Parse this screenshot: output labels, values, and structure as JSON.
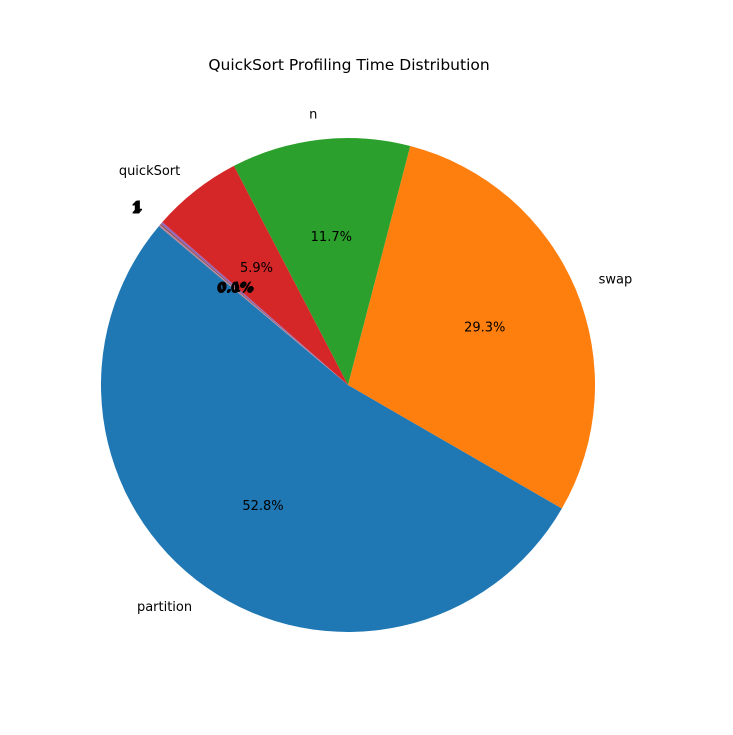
{
  "chart_data": {
    "type": "pie",
    "title": "QuickSort Profiling Time Distribution",
    "start_angle_deg": 140,
    "direction": "counterclockwise",
    "slices": [
      {
        "label": "partition",
        "value": 52.8,
        "pct_label": "52.8%",
        "color": "#1f77b4"
      },
      {
        "label": "swap",
        "value": 29.3,
        "pct_label": "29.3%",
        "color": "#ff7f0e"
      },
      {
        "label": "n",
        "value": 11.7,
        "pct_label": "11.7%",
        "color": "#2ca02c"
      },
      {
        "label": "quickSort",
        "value": 5.9,
        "pct_label": "5.9%",
        "color": "#d62728"
      },
      {
        "label": "1",
        "value": 0.15,
        "pct_label": "0.1%",
        "color": "#9467bd"
      },
      {
        "label": "1",
        "value": 0.1,
        "pct_label": "0.1%",
        "color": "#8c564b"
      },
      {
        "label": "1",
        "value": 0.05,
        "pct_label": "0.0%",
        "color": "#e377c2"
      },
      {
        "label": "1",
        "value": 0.05,
        "pct_label": "0.0%",
        "color": "#7f7f7f"
      }
    ]
  }
}
